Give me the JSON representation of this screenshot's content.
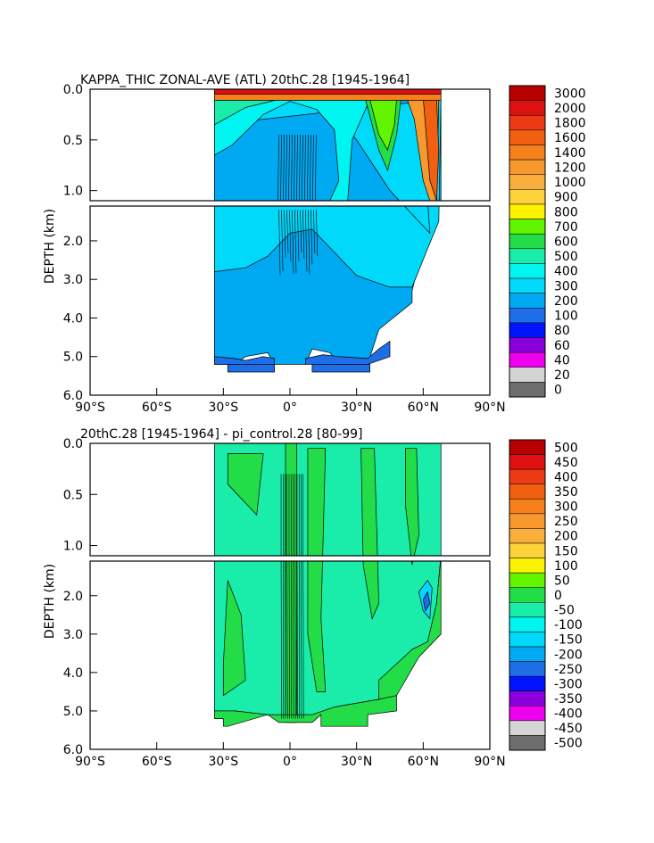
{
  "chart_data": [
    {
      "type": "heatmap",
      "title": "KAPPA_THIC ZONAL-AVE (ATL) 20thC.28 [1945-1964]",
      "ylabel": "DEPTH (km)",
      "xlabel": "",
      "x_ticks": [
        "90°S",
        "60°S",
        "30°S",
        "0°",
        "30°N",
        "60°N",
        "90°N"
      ],
      "x_range_deg": [
        -90,
        90
      ],
      "y_ticks_upper": [
        "0.0",
        "0.5",
        "1.0"
      ],
      "y_ticks_lower": [
        "2.0",
        "3.0",
        "4.0",
        "5.0",
        "6.0"
      ],
      "y_range_km": [
        0,
        6
      ],
      "depth_break_km": 1.1,
      "data_extent": {
        "lat_min": -34,
        "lat_max": 68
      },
      "colorbar": {
        "labels": [
          "3000",
          "2000",
          "1800",
          "1600",
          "1400",
          "1200",
          "1000",
          "900",
          "800",
          "700",
          "600",
          "500",
          "400",
          "300",
          "200",
          "100",
          "80",
          "60",
          "40",
          "20",
          "0"
        ],
        "colors": [
          "#b80000",
          "#de1010",
          "#ee3a14",
          "#f06010",
          "#f5801c",
          "#f7992e",
          "#faaf3c",
          "#fdd23a",
          "#fff200",
          "#63f500",
          "#23dd48",
          "#1aecaa",
          "#00f4f0",
          "#00d9fa",
          "#00aaf2",
          "#1e6ee8",
          "#0014ff",
          "#8a00dc",
          "#ee00ee",
          "#d4d4d4",
          "#6e6e6e"
        ]
      }
    },
    {
      "type": "heatmap",
      "title": "20thC.28 [1945-1964] - pi_control.28 [80-99]",
      "ylabel": "DEPTH (km)",
      "xlabel": "",
      "x_ticks": [
        "90°S",
        "60°S",
        "30°S",
        "0°",
        "30°N",
        "60°N",
        "90°N"
      ],
      "x_range_deg": [
        -90,
        90
      ],
      "y_ticks_upper": [
        "0.0",
        "0.5",
        "1.0"
      ],
      "y_ticks_lower": [
        "2.0",
        "3.0",
        "4.0",
        "5.0",
        "6.0"
      ],
      "y_range_km": [
        0,
        6
      ],
      "depth_break_km": 1.1,
      "data_extent": {
        "lat_min": -34,
        "lat_max": 68
      },
      "colorbar": {
        "labels": [
          "500",
          "450",
          "400",
          "350",
          "300",
          "250",
          "200",
          "150",
          "100",
          "50",
          "0",
          "-50",
          "-100",
          "-150",
          "-200",
          "-250",
          "-300",
          "-350",
          "-400",
          "-450",
          "-500"
        ],
        "colors": [
          "#b80000",
          "#de1010",
          "#ee3a14",
          "#f06010",
          "#f5801c",
          "#f7992e",
          "#faaf3c",
          "#fdd23a",
          "#fff200",
          "#63f500",
          "#23dd48",
          "#1aecaa",
          "#00f4f0",
          "#00d9fa",
          "#00aaf2",
          "#1e6ee8",
          "#0014ff",
          "#8a00dc",
          "#ee00ee",
          "#d4d4d4",
          "#6e6e6e"
        ]
      }
    }
  ]
}
